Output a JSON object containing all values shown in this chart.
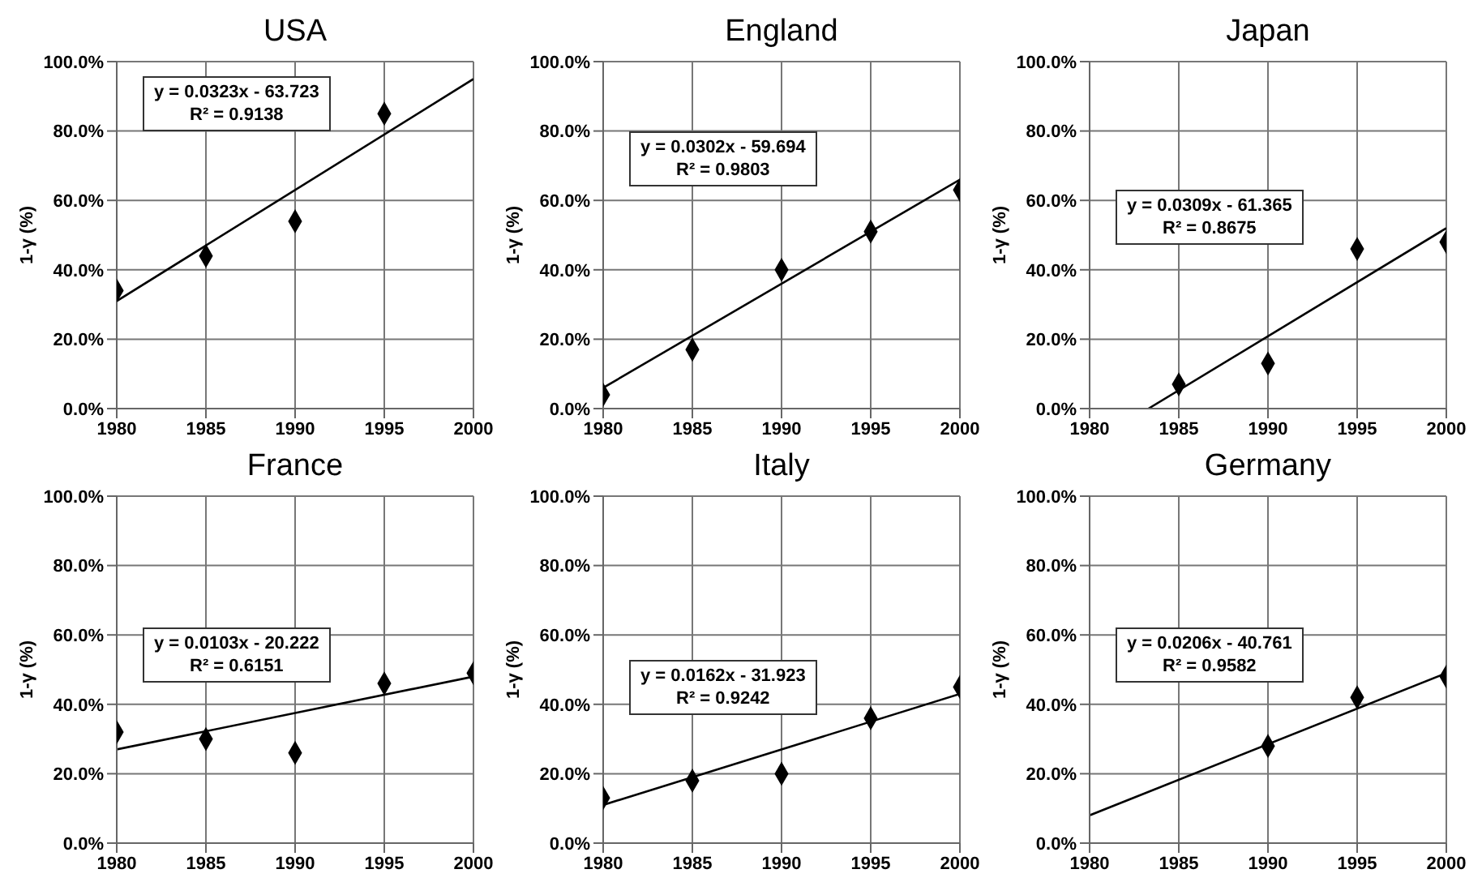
{
  "chart_data": [
    {
      "type": "scatter",
      "title": "USA",
      "ylabel": "1-γ (%)",
      "xlim": [
        1980,
        2000
      ],
      "xticks": [
        1980,
        1985,
        1990,
        1995,
        2000
      ],
      "ylim": [
        0,
        1
      ],
      "yticks": [
        {
          "value": 0,
          "label": "0.0%"
        },
        {
          "value": 0.2,
          "label": "20.0%"
        },
        {
          "value": 0.4,
          "label": "40.0%"
        },
        {
          "value": 0.6,
          "label": "60.0%"
        },
        {
          "value": 0.8,
          "label": "80.0%"
        },
        {
          "value": 1,
          "label": "100.0%"
        }
      ],
      "grid": true,
      "annotations": [
        "y = 0.0323x - 63.723",
        "R² = 0.9138"
      ],
      "series": [
        {
          "marker": "diamond",
          "color": "#000000",
          "x": [
            1980,
            1985,
            1990,
            1995
          ],
          "values": [
            0.34,
            0.44,
            0.54,
            0.85
          ]
        },
        {
          "type": "line",
          "color": "#000000",
          "x": [
            1980,
            2000
          ],
          "values": [
            0.31,
            0.95
          ]
        }
      ]
    },
    {
      "type": "scatter",
      "title": "England",
      "ylabel": "1-γ (%)",
      "xlim": [
        1980,
        2000
      ],
      "xticks": [
        1980,
        1985,
        1990,
        1995,
        2000
      ],
      "ylim": [
        0,
        1
      ],
      "yticks": [
        {
          "value": 0,
          "label": "0.0%"
        },
        {
          "value": 0.2,
          "label": "20.0%"
        },
        {
          "value": 0.4,
          "label": "40.0%"
        },
        {
          "value": 0.6,
          "label": "60.0%"
        },
        {
          "value": 0.8,
          "label": "80.0%"
        },
        {
          "value": 1,
          "label": "100.0%"
        }
      ],
      "grid": true,
      "annotations": [
        "y = 0.0302x - 59.694",
        "R² = 0.9803"
      ],
      "series": [
        {
          "marker": "diamond",
          "color": "#000000",
          "x": [
            1980,
            1985,
            1990,
            1995,
            2000
          ],
          "values": [
            0.04,
            0.17,
            0.4,
            0.51,
            0.63
          ]
        },
        {
          "type": "line",
          "color": "#000000",
          "x": [
            1980,
            2000
          ],
          "values": [
            0.06,
            0.66
          ]
        }
      ]
    },
    {
      "type": "scatter",
      "title": "Japan",
      "ylabel": "1-γ (%)",
      "xlim": [
        1980,
        2000
      ],
      "xticks": [
        1980,
        1985,
        1990,
        1995,
        2000
      ],
      "ylim": [
        0,
        1
      ],
      "yticks": [
        {
          "value": 0,
          "label": "0.0%"
        },
        {
          "value": 0.2,
          "label": "20.0%"
        },
        {
          "value": 0.4,
          "label": "40.0%"
        },
        {
          "value": 0.6,
          "label": "60.0%"
        },
        {
          "value": 0.8,
          "label": "80.0%"
        },
        {
          "value": 1,
          "label": "100.0%"
        }
      ],
      "grid": true,
      "annotations": [
        "y = 0.0309x - 61.365",
        "R² = 0.8675"
      ],
      "series": [
        {
          "marker": "diamond",
          "color": "#000000",
          "x": [
            1985,
            1990,
            1995,
            2000
          ],
          "values": [
            0.07,
            0.13,
            0.46,
            0.48
          ]
        },
        {
          "type": "line",
          "color": "#000000",
          "x": [
            1983.3,
            2000
          ],
          "values": [
            0,
            0.52
          ]
        }
      ]
    },
    {
      "type": "scatter",
      "title": "France",
      "ylabel": "1-γ (%)",
      "xlim": [
        1980,
        2000
      ],
      "xticks": [
        1980,
        1985,
        1990,
        1995,
        2000
      ],
      "ylim": [
        0,
        1
      ],
      "yticks": [
        {
          "value": 0,
          "label": "0.0%"
        },
        {
          "value": 0.2,
          "label": "20.0%"
        },
        {
          "value": 0.4,
          "label": "40.0%"
        },
        {
          "value": 0.6,
          "label": "60.0%"
        },
        {
          "value": 0.8,
          "label": "80.0%"
        },
        {
          "value": 1,
          "label": "100.0%"
        }
      ],
      "grid": true,
      "annotations": [
        "y = 0.0103x - 20.222",
        "R² = 0.6151"
      ],
      "series": [
        {
          "marker": "diamond",
          "color": "#000000",
          "x": [
            1980,
            1985,
            1990,
            1995,
            2000
          ],
          "values": [
            0.32,
            0.3,
            0.26,
            0.46,
            0.49
          ]
        },
        {
          "type": "line",
          "color": "#000000",
          "x": [
            1980,
            2000
          ],
          "values": [
            0.27,
            0.48
          ]
        }
      ]
    },
    {
      "type": "scatter",
      "title": "Italy",
      "ylabel": "1-γ (%)",
      "xlim": [
        1980,
        2000
      ],
      "xticks": [
        1980,
        1985,
        1990,
        1995,
        2000
      ],
      "ylim": [
        0,
        1
      ],
      "yticks": [
        {
          "value": 0,
          "label": "0.0%"
        },
        {
          "value": 0.2,
          "label": "20.0%"
        },
        {
          "value": 0.4,
          "label": "40.0%"
        },
        {
          "value": 0.6,
          "label": "60.0%"
        },
        {
          "value": 0.8,
          "label": "80.0%"
        },
        {
          "value": 1,
          "label": "100.0%"
        }
      ],
      "grid": true,
      "annotations": [
        "y = 0.0162x - 31.923",
        "R² = 0.9242"
      ],
      "series": [
        {
          "marker": "diamond",
          "color": "#000000",
          "x": [
            1980,
            1985,
            1990,
            1995,
            2000
          ],
          "values": [
            0.13,
            0.18,
            0.2,
            0.36,
            0.45
          ]
        },
        {
          "type": "line",
          "color": "#000000",
          "x": [
            1980,
            2000
          ],
          "values": [
            0.11,
            0.43
          ]
        }
      ]
    },
    {
      "type": "scatter",
      "title": "Germany",
      "ylabel": "1-γ (%)",
      "xlim": [
        1980,
        2000
      ],
      "xticks": [
        1980,
        1985,
        1990,
        1995,
        2000
      ],
      "ylim": [
        0,
        1
      ],
      "yticks": [
        {
          "value": 0,
          "label": "0.0%"
        },
        {
          "value": 0.2,
          "label": "20.0%"
        },
        {
          "value": 0.4,
          "label": "40.0%"
        },
        {
          "value": 0.6,
          "label": "60.0%"
        },
        {
          "value": 0.8,
          "label": "80.0%"
        },
        {
          "value": 1,
          "label": "100.0%"
        }
      ],
      "grid": true,
      "annotations": [
        "y = 0.0206x - 40.761",
        "R² = 0.9582"
      ],
      "series": [
        {
          "marker": "diamond",
          "color": "#000000",
          "x": [
            1990,
            1995,
            2000
          ],
          "values": [
            0.28,
            0.42,
            0.48
          ]
        },
        {
          "type": "line",
          "color": "#000000",
          "x": [
            1980,
            2000
          ],
          "values": [
            0.08,
            0.49
          ]
        }
      ]
    }
  ]
}
